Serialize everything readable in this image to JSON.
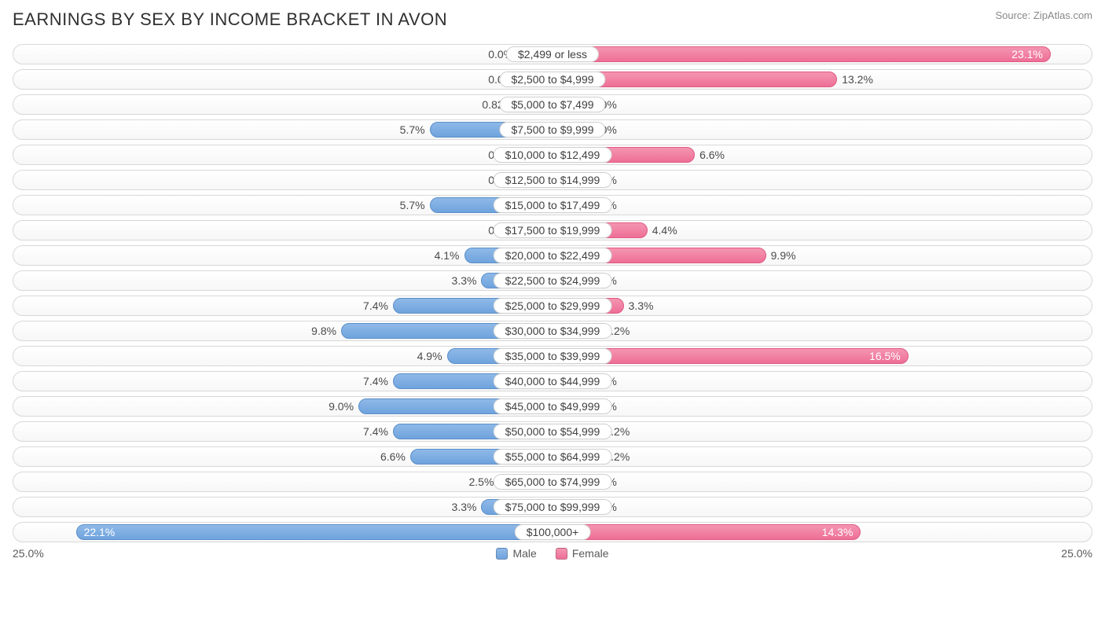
{
  "title": "EARNINGS BY SEX BY INCOME BRACKET IN AVON",
  "source": "Source: ZipAtlas.com",
  "axis_max_pct": 25.0,
  "axis_label_left": "25.0%",
  "axis_label_right": "25.0%",
  "colors": {
    "male_fill_top": "#8fb9e8",
    "male_fill_bottom": "#6fa3dd",
    "male_border": "#5a8fc9",
    "female_fill_top": "#f495b1",
    "female_fill_bottom": "#ee6f96",
    "female_border": "#e05a82",
    "row_border": "#d8d8d8",
    "text": "#4a4a4a",
    "title_text": "#303030",
    "source_text": "#888888"
  },
  "legend": {
    "male": "Male",
    "female": "Female"
  },
  "min_bar_pct": 1.6,
  "inside_threshold_pct": 14.0,
  "rows": [
    {
      "label": "$2,499 or less",
      "male": 0.0,
      "female": 23.1,
      "male_label": "0.0%",
      "female_label": "23.1%"
    },
    {
      "label": "$2,500 to $4,999",
      "male": 0.0,
      "female": 13.2,
      "male_label": "0.0%",
      "female_label": "13.2%"
    },
    {
      "label": "$5,000 to $7,499",
      "male": 0.82,
      "female": 0.0,
      "male_label": "0.82%",
      "female_label": "0.0%"
    },
    {
      "label": "$7,500 to $9,999",
      "male": 5.7,
      "female": 0.0,
      "male_label": "5.7%",
      "female_label": "0.0%"
    },
    {
      "label": "$10,000 to $12,499",
      "male": 0.0,
      "female": 6.6,
      "male_label": "0.0%",
      "female_label": "6.6%"
    },
    {
      "label": "$12,500 to $14,999",
      "male": 0.0,
      "female": 1.1,
      "male_label": "0.0%",
      "female_label": "1.1%"
    },
    {
      "label": "$15,000 to $17,499",
      "male": 5.7,
      "female": 0.0,
      "male_label": "5.7%",
      "female_label": "0.0%"
    },
    {
      "label": "$17,500 to $19,999",
      "male": 0.0,
      "female": 4.4,
      "male_label": "0.0%",
      "female_label": "4.4%"
    },
    {
      "label": "$20,000 to $22,499",
      "male": 4.1,
      "female": 9.9,
      "male_label": "4.1%",
      "female_label": "9.9%"
    },
    {
      "label": "$22,500 to $24,999",
      "male": 3.3,
      "female": 0.0,
      "male_label": "3.3%",
      "female_label": "0.0%"
    },
    {
      "label": "$25,000 to $29,999",
      "male": 7.4,
      "female": 3.3,
      "male_label": "7.4%",
      "female_label": "3.3%"
    },
    {
      "label": "$30,000 to $34,999",
      "male": 9.8,
      "female": 2.2,
      "male_label": "9.8%",
      "female_label": "2.2%"
    },
    {
      "label": "$35,000 to $39,999",
      "male": 4.9,
      "female": 16.5,
      "male_label": "4.9%",
      "female_label": "16.5%"
    },
    {
      "label": "$40,000 to $44,999",
      "male": 7.4,
      "female": 0.0,
      "male_label": "7.4%",
      "female_label": "0.0%"
    },
    {
      "label": "$45,000 to $49,999",
      "male": 9.0,
      "female": 1.1,
      "male_label": "9.0%",
      "female_label": "1.1%"
    },
    {
      "label": "$50,000 to $54,999",
      "male": 7.4,
      "female": 2.2,
      "male_label": "7.4%",
      "female_label": "2.2%"
    },
    {
      "label": "$55,000 to $64,999",
      "male": 6.6,
      "female": 2.2,
      "male_label": "6.6%",
      "female_label": "2.2%"
    },
    {
      "label": "$65,000 to $74,999",
      "male": 2.5,
      "female": 0.0,
      "male_label": "2.5%",
      "female_label": "0.0%"
    },
    {
      "label": "$75,000 to $99,999",
      "male": 3.3,
      "female": 0.0,
      "male_label": "3.3%",
      "female_label": "0.0%"
    },
    {
      "label": "$100,000+",
      "male": 22.1,
      "female": 14.3,
      "male_label": "22.1%",
      "female_label": "14.3%"
    }
  ]
}
